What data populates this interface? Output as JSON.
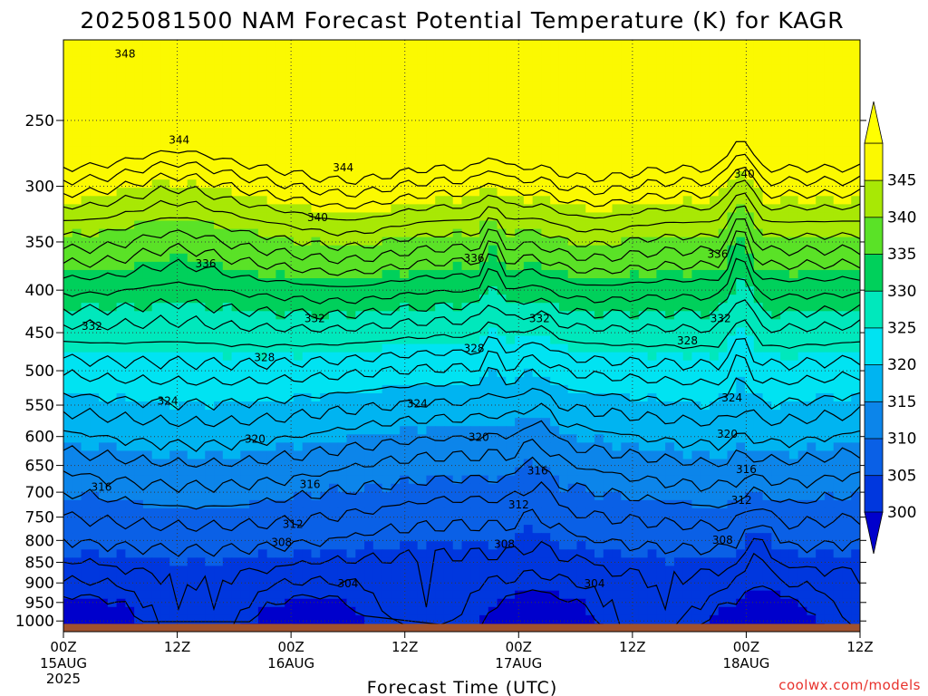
{
  "chart_data": {
    "type": "contour",
    "title": "2025081500 NAM Forecast Potential Temperature (K) for KAGR",
    "xlabel": "Forecast Time (UTC)",
    "ylabel": "",
    "station": "KAGR",
    "credit": "coolwx.com/models",
    "x_unit": "forecast hour",
    "xlim": [
      0,
      84
    ],
    "x_ticks": [
      {
        "hour": 0,
        "label": "00Z",
        "date": "15AUG",
        "year": "2025"
      },
      {
        "hour": 12,
        "label": "12Z",
        "date": "",
        "year": ""
      },
      {
        "hour": 24,
        "label": "00Z",
        "date": "16AUG",
        "year": ""
      },
      {
        "hour": 36,
        "label": "12Z",
        "date": "",
        "year": ""
      },
      {
        "hour": 48,
        "label": "00Z",
        "date": "17AUG",
        "year": ""
      },
      {
        "hour": 60,
        "label": "12Z",
        "date": "",
        "year": ""
      },
      {
        "hour": 72,
        "label": "00Z",
        "date": "18AUG",
        "year": ""
      },
      {
        "hour": 84,
        "label": "12Z",
        "date": "",
        "year": ""
      }
    ],
    "y_unit": "hPa",
    "ylim": [
      1030,
      200
    ],
    "y_ticks": [
      250,
      300,
      350,
      400,
      450,
      500,
      550,
      600,
      650,
      700,
      750,
      800,
      850,
      900,
      950,
      1000
    ],
    "grid": true,
    "colorbar": {
      "levels": [
        300,
        305,
        310,
        315,
        320,
        325,
        330,
        335,
        340,
        345
      ],
      "labels": [
        "300",
        "305",
        "310",
        "315",
        "320",
        "325",
        "330",
        "335",
        "340",
        "345"
      ],
      "colors": [
        "#0037de",
        "#0a60e6",
        "#0c85ea",
        "#00b4f1",
        "#00e3f2",
        "#00e8bc",
        "#00d05b",
        "#5ae227",
        "#a8e805",
        "#fbf901"
      ],
      "under_color": "#0000cc",
      "over_color": "#ffff00"
    },
    "contour_levels": [
      300,
      302,
      304,
      306,
      308,
      310,
      312,
      314,
      316,
      318,
      320,
      322,
      324,
      326,
      328,
      330,
      332,
      334,
      336,
      338,
      340,
      342,
      344,
      346,
      348,
      350
    ],
    "contour_labels": [
      {
        "text": "348",
        "x": 6.5,
        "y": 208
      },
      {
        "text": "344",
        "x": 12.2,
        "y": 264
      },
      {
        "text": "344",
        "x": 29.5,
        "y": 285
      },
      {
        "text": "340",
        "x": 26.8,
        "y": 327
      },
      {
        "text": "340",
        "x": 71.8,
        "y": 290
      },
      {
        "text": "336",
        "x": 15.0,
        "y": 372
      },
      {
        "text": "336",
        "x": 43.3,
        "y": 366
      },
      {
        "text": "336",
        "x": 69.0,
        "y": 362
      },
      {
        "text": "332",
        "x": 3.0,
        "y": 442
      },
      {
        "text": "332",
        "x": 26.5,
        "y": 433
      },
      {
        "text": "332",
        "x": 50.2,
        "y": 433
      },
      {
        "text": "332",
        "x": 69.3,
        "y": 433
      },
      {
        "text": "328",
        "x": 21.2,
        "y": 482
      },
      {
        "text": "328",
        "x": 43.3,
        "y": 470
      },
      {
        "text": "328",
        "x": 65.8,
        "y": 460
      },
      {
        "text": "324",
        "x": 11.0,
        "y": 544
      },
      {
        "text": "324",
        "x": 37.3,
        "y": 548
      },
      {
        "text": "324",
        "x": 70.5,
        "y": 539
      },
      {
        "text": "320",
        "x": 20.2,
        "y": 604
      },
      {
        "text": "320",
        "x": 43.8,
        "y": 601
      },
      {
        "text": "320",
        "x": 70.0,
        "y": 596
      },
      {
        "text": "316",
        "x": 4.0,
        "y": 690
      },
      {
        "text": "316",
        "x": 26.0,
        "y": 685
      },
      {
        "text": "316",
        "x": 50.0,
        "y": 660
      },
      {
        "text": "316",
        "x": 72.0,
        "y": 657
      },
      {
        "text": "312",
        "x": 24.2,
        "y": 765
      },
      {
        "text": "312",
        "x": 48.0,
        "y": 725
      },
      {
        "text": "312",
        "x": 71.5,
        "y": 716
      },
      {
        "text": "308",
        "x": 23.0,
        "y": 804
      },
      {
        "text": "308",
        "x": 46.5,
        "y": 808
      },
      {
        "text": "308",
        "x": 69.5,
        "y": 799
      },
      {
        "text": "304",
        "x": 30.0,
        "y": 902
      },
      {
        "text": "304",
        "x": 56.0,
        "y": 902
      }
    ],
    "terrain_below_hPa": 1008
  }
}
